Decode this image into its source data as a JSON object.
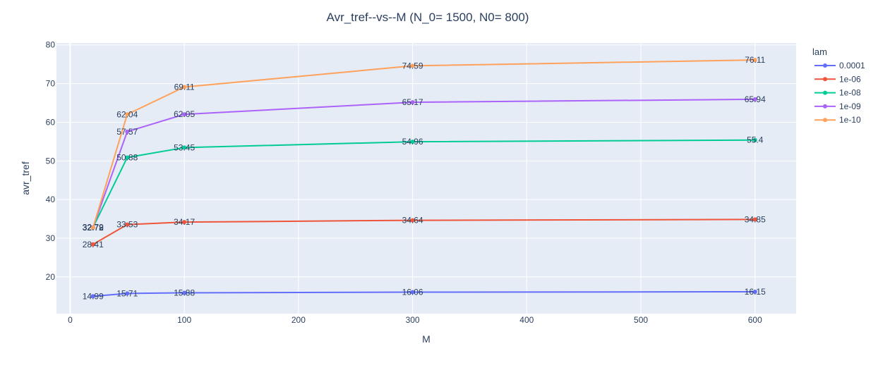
{
  "chart_data": {
    "type": "line",
    "title": "Avr_tref--vs--M  (N_0= 1500, N0= 800)",
    "xlabel": "M",
    "ylabel": "avr_tref",
    "xlim": [
      -12,
      636
    ],
    "ylim": [
      10.5,
      80.5
    ],
    "xticks": [
      0,
      100,
      200,
      300,
      400,
      500,
      600
    ],
    "yticks": [
      20,
      30,
      40,
      50,
      60,
      70,
      80
    ],
    "grid": true,
    "legend_title": "lam",
    "legend_position": "top-right outside",
    "x": [
      20,
      50,
      100,
      300,
      600
    ],
    "series": [
      {
        "name": "0.0001",
        "color": "#636efa",
        "values": [
          14.99,
          15.71,
          15.88,
          16.06,
          16.15
        ],
        "labels": [
          "14.99",
          "15.71",
          "15.88",
          "16.06",
          "16.15"
        ]
      },
      {
        "name": "1e-06",
        "color": "#ef553b",
        "values": [
          28.41,
          33.53,
          34.17,
          34.64,
          34.85
        ],
        "labels": [
          "28.41",
          "33.53",
          "34.17",
          "34.64",
          "34.85"
        ]
      },
      {
        "name": "1e-08",
        "color": "#00cc96",
        "values": [
          32.79,
          50.88,
          53.45,
          54.96,
          55.4
        ],
        "labels": [
          "32.79",
          "50.88",
          "53.45",
          "54.96",
          "55.4"
        ]
      },
      {
        "name": "1e-09",
        "color": "#ab63fa",
        "values": [
          32.78,
          57.57,
          62.05,
          65.17,
          65.94
        ],
        "labels": [
          "32.78",
          "57.57",
          "62.05",
          "65.17",
          "65.94"
        ]
      },
      {
        "name": "1e-10",
        "color": "#ffa15a",
        "values": [
          32.72,
          62.04,
          69.11,
          74.59,
          76.11
        ],
        "labels": [
          "32.72",
          "62.04",
          "69.11",
          "74.59",
          "76.11"
        ]
      }
    ]
  }
}
